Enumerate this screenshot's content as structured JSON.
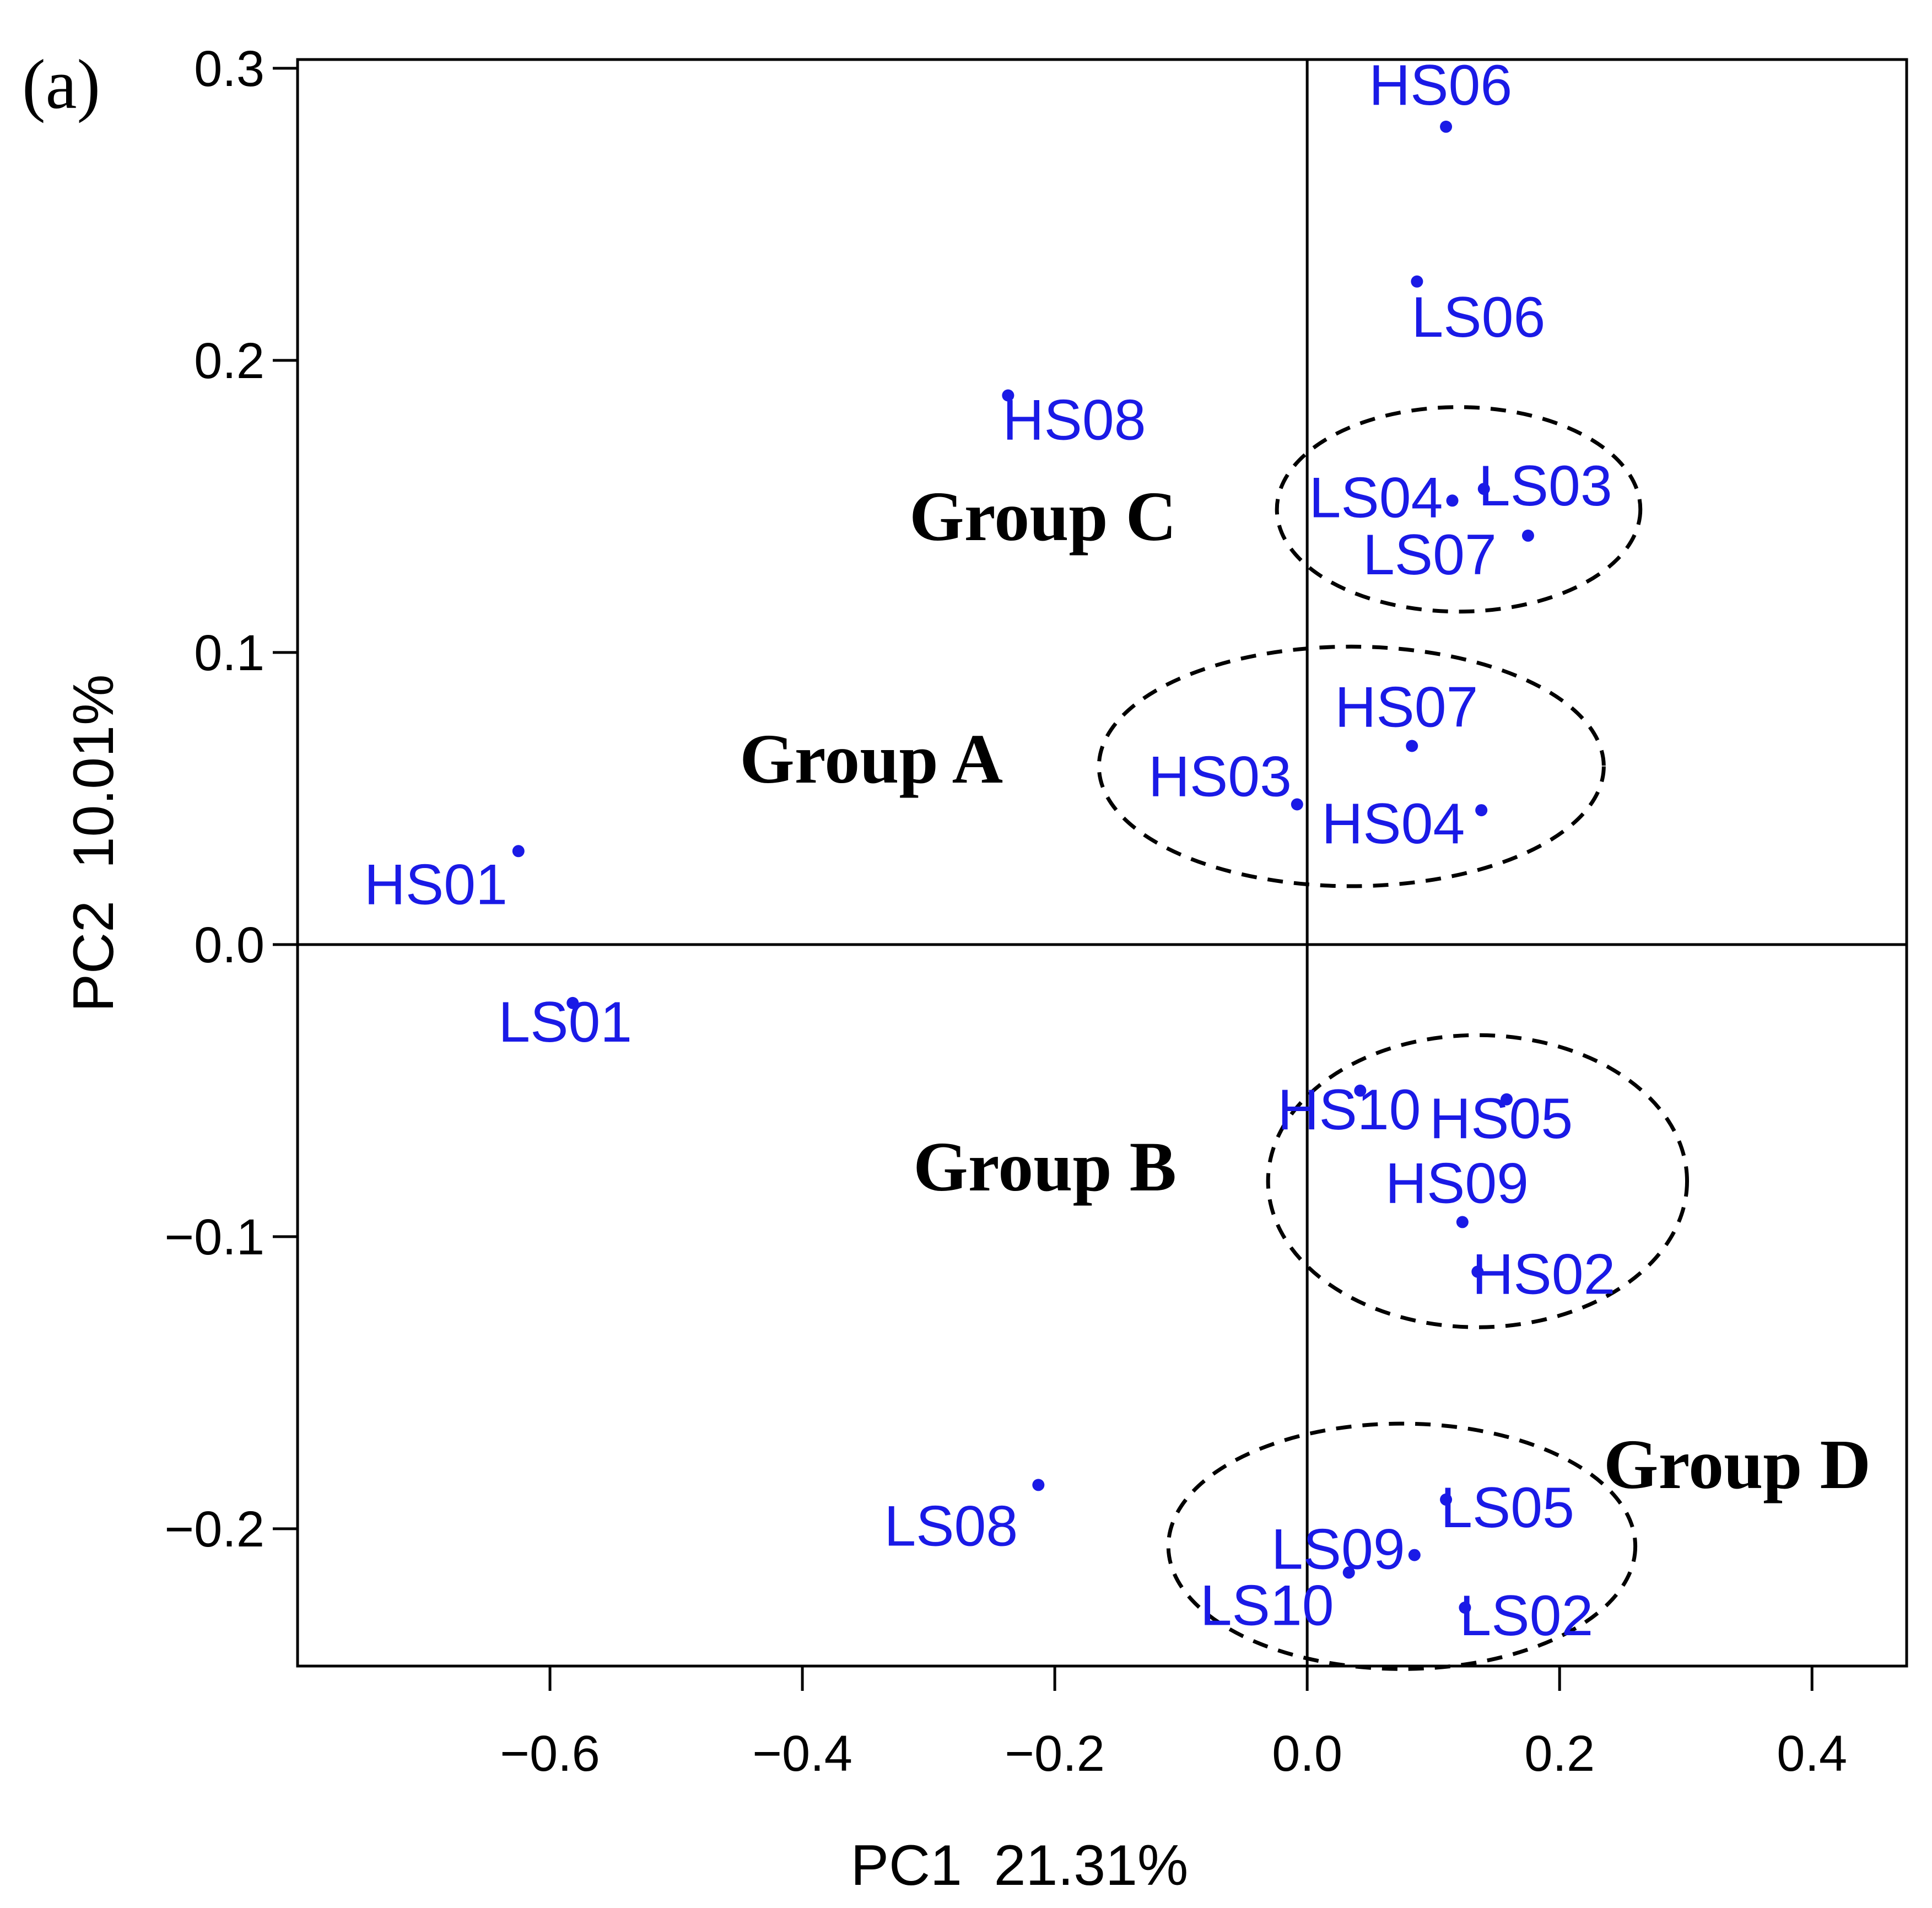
{
  "panel_label": "(a)",
  "colors": {
    "points": "#1a1ae6",
    "axes": "#000000"
  },
  "chart_data": {
    "type": "scatter",
    "title": "",
    "xlabel": "PC1  21.31%",
    "ylabel": "PC2  10.01%",
    "xlim": [
      -0.8,
      0.475
    ],
    "ylim": [
      -0.247,
      0.303
    ],
    "xticks": [
      -0.6,
      -0.4,
      -0.2,
      0.0,
      0.2,
      0.4
    ],
    "xtick_labels": [
      "−0.6",
      "−0.4",
      "−0.2",
      "0.0",
      "0.2",
      "0.4"
    ],
    "yticks": [
      -0.2,
      -0.1,
      0.0,
      0.1,
      0.2,
      0.3
    ],
    "ytick_labels": [
      "−0.2",
      "−0.1",
      "0.0",
      "0.1",
      "0.2",
      "0.3"
    ],
    "reference_lines": {
      "x": 0.0,
      "y": 0.0
    },
    "points": [
      {
        "label": "HS01",
        "x": -0.625,
        "y": 0.032
      },
      {
        "label": "HS02",
        "x": 0.135,
        "y": -0.112
      },
      {
        "label": "HS03",
        "x": -0.008,
        "y": 0.048
      },
      {
        "label": "HS04",
        "x": 0.138,
        "y": 0.046
      },
      {
        "label": "HS05",
        "x": 0.158,
        "y": -0.053
      },
      {
        "label": "HS06",
        "x": 0.11,
        "y": 0.28
      },
      {
        "label": "HS07",
        "x": 0.083,
        "y": 0.068
      },
      {
        "label": "HS08",
        "x": -0.237,
        "y": 0.188
      },
      {
        "label": "HS09",
        "x": 0.123,
        "y": -0.095
      },
      {
        "label": "HS10",
        "x": 0.042,
        "y": -0.05
      },
      {
        "label": "LS01",
        "x": -0.582,
        "y": -0.02
      },
      {
        "label": "LS02",
        "x": 0.125,
        "y": -0.227
      },
      {
        "label": "LS03",
        "x": 0.14,
        "y": 0.156
      },
      {
        "label": "LS04",
        "x": 0.115,
        "y": 0.152
      },
      {
        "label": "LS05",
        "x": 0.11,
        "y": -0.19
      },
      {
        "label": "LS06",
        "x": 0.087,
        "y": 0.227
      },
      {
        "label": "LS07",
        "x": 0.175,
        "y": 0.14
      },
      {
        "label": "LS08",
        "x": -0.213,
        "y": -0.185
      },
      {
        "label": "LS09",
        "x": 0.085,
        "y": -0.209
      },
      {
        "label": "LS10",
        "x": 0.033,
        "y": -0.215
      }
    ],
    "groups": [
      {
        "label": "Group A",
        "cx": 0.035,
        "cy": 0.061,
        "rx": 0.2,
        "ry": 0.041
      },
      {
        "label": "Group B",
        "cx": 0.135,
        "cy": -0.081,
        "rx": 0.166,
        "ry": 0.05
      },
      {
        "label": "Group C",
        "cx": 0.12,
        "cy": 0.149,
        "rx": 0.144,
        "ry": 0.035
      },
      {
        "label": "Group D",
        "cx": 0.075,
        "cy": -0.206,
        "rx": 0.185,
        "ry": 0.042
      }
    ]
  }
}
